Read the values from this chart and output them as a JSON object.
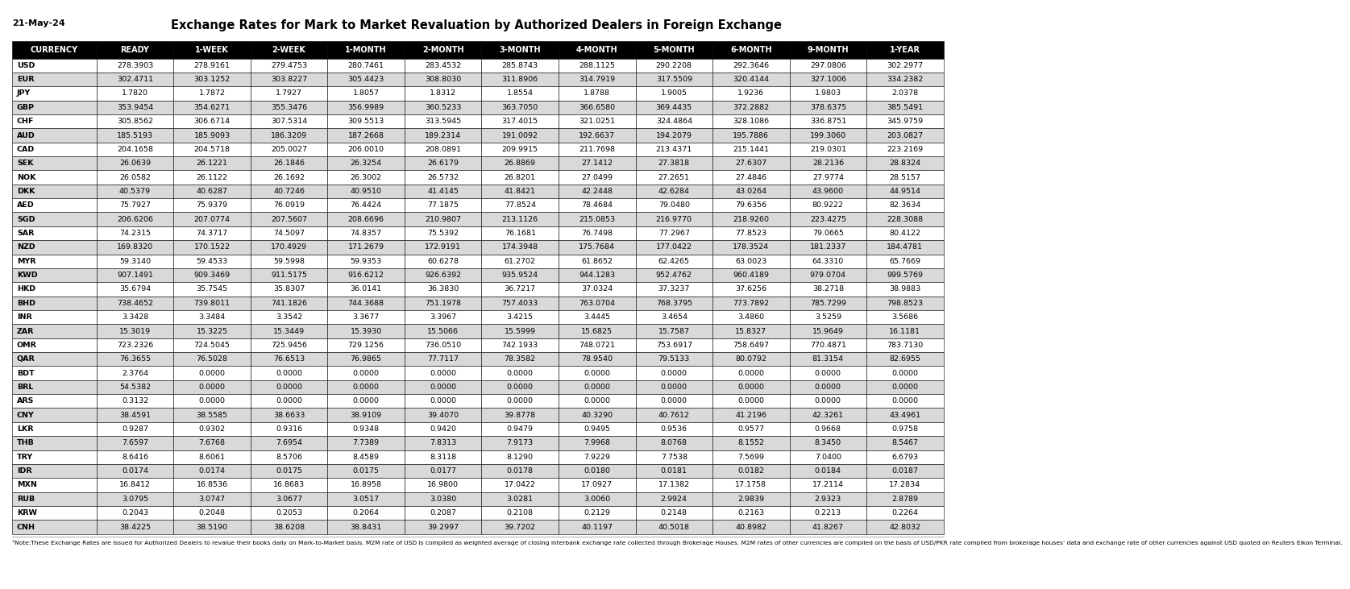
{
  "date": "21-May-24",
  "title": "Exchange Rates for Mark to Market Revaluation by Authorized Dealers in Foreign Exchange",
  "columns": [
    "CURRENCY",
    "READY",
    "1-WEEK",
    "2-WEEK",
    "1-MONTH",
    "2-MONTH",
    "3-MONTH",
    "4-MONTH",
    "5-MONTH",
    "6-MONTH",
    "9-MONTH",
    "1-YEAR"
  ],
  "rows": [
    [
      "USD",
      "278.3903",
      "278.9161",
      "279.4753",
      "280.7461",
      "283.4532",
      "285.8743",
      "288.1125",
      "290.2208",
      "292.3646",
      "297.0806",
      "302.2977"
    ],
    [
      "EUR",
      "302.4711",
      "303.1252",
      "303.8227",
      "305.4423",
      "308.8030",
      "311.8906",
      "314.7919",
      "317.5509",
      "320.4144",
      "327.1006",
      "334.2382"
    ],
    [
      "JPY",
      "1.7820",
      "1.7872",
      "1.7927",
      "1.8057",
      "1.8312",
      "1.8554",
      "1.8788",
      "1.9005",
      "1.9236",
      "1.9803",
      "2.0378"
    ],
    [
      "GBP",
      "353.9454",
      "354.6271",
      "355.3476",
      "356.9989",
      "360.5233",
      "363.7050",
      "366.6580",
      "369.4435",
      "372.2882",
      "378.6375",
      "385.5491"
    ],
    [
      "CHF",
      "305.8562",
      "306.6714",
      "307.5314",
      "309.5513",
      "313.5945",
      "317.4015",
      "321.0251",
      "324.4864",
      "328.1086",
      "336.8751",
      "345.9759"
    ],
    [
      "AUD",
      "185.5193",
      "185.9093",
      "186.3209",
      "187.2668",
      "189.2314",
      "191.0092",
      "192.6637",
      "194.2079",
      "195.7886",
      "199.3060",
      "203.0827"
    ],
    [
      "CAD",
      "204.1658",
      "204.5718",
      "205.0027",
      "206.0010",
      "208.0891",
      "209.9915",
      "211.7698",
      "213.4371",
      "215.1441",
      "219.0301",
      "223.2169"
    ],
    [
      "SEK",
      "26.0639",
      "26.1221",
      "26.1846",
      "26.3254",
      "26.6179",
      "26.8869",
      "27.1412",
      "27.3818",
      "27.6307",
      "28.2136",
      "28.8324"
    ],
    [
      "NOK",
      "26.0582",
      "26.1122",
      "26.1692",
      "26.3002",
      "26.5732",
      "26.8201",
      "27.0499",
      "27.2651",
      "27.4846",
      "27.9774",
      "28.5157"
    ],
    [
      "DKK",
      "40.5379",
      "40.6287",
      "40.7246",
      "40.9510",
      "41.4145",
      "41.8421",
      "42.2448",
      "42.6284",
      "43.0264",
      "43.9600",
      "44.9514"
    ],
    [
      "AED",
      "75.7927",
      "75.9379",
      "76.0919",
      "76.4424",
      "77.1875",
      "77.8524",
      "78.4684",
      "79.0480",
      "79.6356",
      "80.9222",
      "82.3634"
    ],
    [
      "SGD",
      "206.6206",
      "207.0774",
      "207.5607",
      "208.6696",
      "210.9807",
      "213.1126",
      "215.0853",
      "216.9770",
      "218.9260",
      "223.4275",
      "228.3088"
    ],
    [
      "SAR",
      "74.2315",
      "74.3717",
      "74.5097",
      "74.8357",
      "75.5392",
      "76.1681",
      "76.7498",
      "77.2967",
      "77.8523",
      "79.0665",
      "80.4122"
    ],
    [
      "NZD",
      "169.8320",
      "170.1522",
      "170.4929",
      "171.2679",
      "172.9191",
      "174.3948",
      "175.7684",
      "177.0422",
      "178.3524",
      "181.2337",
      "184.4781"
    ],
    [
      "MYR",
      "59.3140",
      "59.4533",
      "59.5998",
      "59.9353",
      "60.6278",
      "61.2702",
      "61.8652",
      "62.4265",
      "63.0023",
      "64.3310",
      "65.7669"
    ],
    [
      "KWD",
      "907.1491",
      "909.3469",
      "911.5175",
      "916.6212",
      "926.6392",
      "935.9524",
      "944.1283",
      "952.4762",
      "960.4189",
      "979.0704",
      "999.5769"
    ],
    [
      "HKD",
      "35.6794",
      "35.7545",
      "35.8307",
      "36.0141",
      "36.3830",
      "36.7217",
      "37.0324",
      "37.3237",
      "37.6256",
      "38.2718",
      "38.9883"
    ],
    [
      "BHD",
      "738.4652",
      "739.8011",
      "741.1826",
      "744.3688",
      "751.1978",
      "757.4033",
      "763.0704",
      "768.3795",
      "773.7892",
      "785.7299",
      "798.8523"
    ],
    [
      "INR",
      "3.3428",
      "3.3484",
      "3.3542",
      "3.3677",
      "3.3967",
      "3.4215",
      "3.4445",
      "3.4654",
      "3.4860",
      "3.5259",
      "3.5686"
    ],
    [
      "ZAR",
      "15.3019",
      "15.3225",
      "15.3449",
      "15.3930",
      "15.5066",
      "15.5999",
      "15.6825",
      "15.7587",
      "15.8327",
      "15.9649",
      "16.1181"
    ],
    [
      "OMR",
      "723.2326",
      "724.5045",
      "725.9456",
      "729.1256",
      "736.0510",
      "742.1933",
      "748.0721",
      "753.6917",
      "758.6497",
      "770.4871",
      "783.7130"
    ],
    [
      "QAR",
      "76.3655",
      "76.5028",
      "76.6513",
      "76.9865",
      "77.7117",
      "78.3582",
      "78.9540",
      "79.5133",
      "80.0792",
      "81.3154",
      "82.6955"
    ],
    [
      "BDT",
      "2.3764",
      "0.0000",
      "0.0000",
      "0.0000",
      "0.0000",
      "0.0000",
      "0.0000",
      "0.0000",
      "0.0000",
      "0.0000",
      "0.0000"
    ],
    [
      "BRL",
      "54.5382",
      "0.0000",
      "0.0000",
      "0.0000",
      "0.0000",
      "0.0000",
      "0.0000",
      "0.0000",
      "0.0000",
      "0.0000",
      "0.0000"
    ],
    [
      "ARS",
      "0.3132",
      "0.0000",
      "0.0000",
      "0.0000",
      "0.0000",
      "0.0000",
      "0.0000",
      "0.0000",
      "0.0000",
      "0.0000",
      "0.0000"
    ],
    [
      "CNY",
      "38.4591",
      "38.5585",
      "38.6633",
      "38.9109",
      "39.4070",
      "39.8778",
      "40.3290",
      "40.7612",
      "41.2196",
      "42.3261",
      "43.4961"
    ],
    [
      "LKR",
      "0.9287",
      "0.9302",
      "0.9316",
      "0.9348",
      "0.9420",
      "0.9479",
      "0.9495",
      "0.9536",
      "0.9577",
      "0.9668",
      "0.9758"
    ],
    [
      "THB",
      "7.6597",
      "7.6768",
      "7.6954",
      "7.7389",
      "7.8313",
      "7.9173",
      "7.9968",
      "8.0768",
      "8.1552",
      "8.3450",
      "8.5467"
    ],
    [
      "TRY",
      "8.6416",
      "8.6061",
      "8.5706",
      "8.4589",
      "8.3118",
      "8.1290",
      "7.9229",
      "7.7538",
      "7.5699",
      "7.0400",
      "6.6793"
    ],
    [
      "IDR",
      "0.0174",
      "0.0174",
      "0.0175",
      "0.0175",
      "0.0177",
      "0.0178",
      "0.0180",
      "0.0181",
      "0.0182",
      "0.0184",
      "0.0187"
    ],
    [
      "MXN",
      "16.8412",
      "16.8536",
      "16.8683",
      "16.8958",
      "16.9800",
      "17.0422",
      "17.0927",
      "17.1382",
      "17.1758",
      "17.2114",
      "17.2834"
    ],
    [
      "RUB",
      "3.0795",
      "3.0747",
      "3.0677",
      "3.0517",
      "3.0380",
      "3.0281",
      "3.0060",
      "2.9924",
      "2.9839",
      "2.9323",
      "2.8789"
    ],
    [
      "KRW",
      "0.2043",
      "0.2048",
      "0.2053",
      "0.2064",
      "0.2087",
      "0.2108",
      "0.2129",
      "0.2148",
      "0.2163",
      "0.2213",
      "0.2264"
    ],
    [
      "CNH",
      "38.4225",
      "38.5190",
      "38.6208",
      "38.8431",
      "39.2997",
      "39.7202",
      "40.1197",
      "40.5018",
      "40.8982",
      "41.8267",
      "42.8032"
    ]
  ],
  "note": "¹Note:These Exchange Rates are issued for Authorized Dealers to revalue their books daily on Mark-to-Market basis. M2M rate of USD is compiled as weighted average of closing interbank exchange rate collected through Brokerage Houses. M2M rates of other currencies are compiled on the basis of USD/PKR rate compiled from brokerage houses’ data and exchange rate of other currencies against USD quoted on Reuters Eikon Terminal.",
  "header_bg": "#000000",
  "header_fg": "#ffffff",
  "alt_row_bg": "#d9d9d9",
  "normal_row_bg": "#ffffff",
  "title_color": "#000000",
  "date_color": "#000000",
  "border_color": "#000000",
  "col_widths_rel": [
    1.1,
    1.0,
    1.0,
    1.0,
    1.0,
    1.0,
    1.0,
    1.0,
    1.0,
    1.0,
    1.0,
    1.0
  ]
}
